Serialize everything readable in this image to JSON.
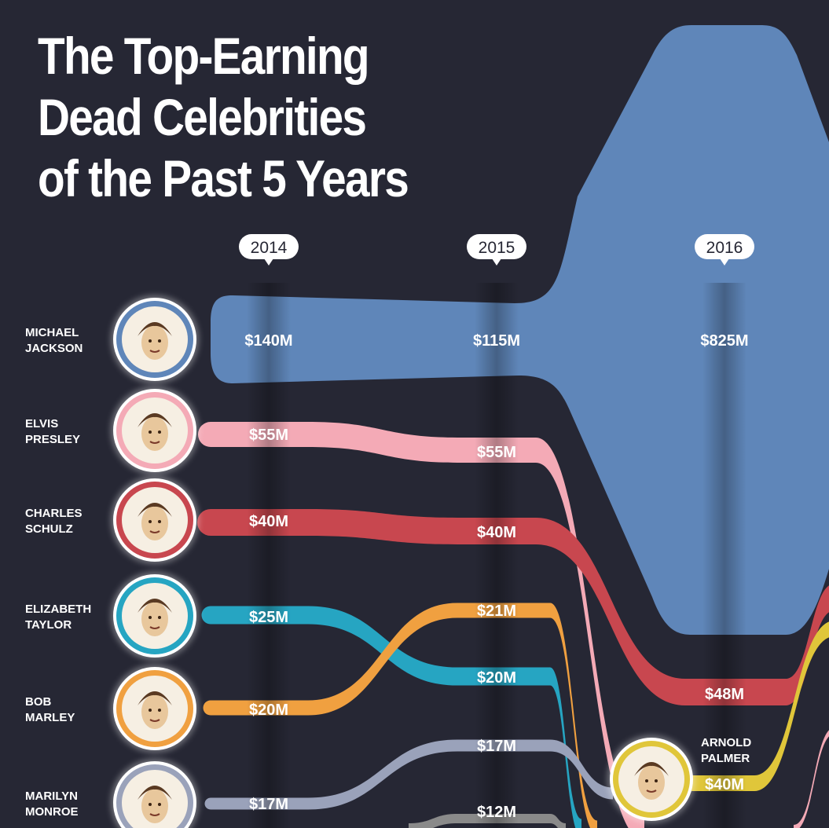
{
  "title_lines": [
    "The Top-Earning",
    "Dead Celebrities",
    "of the Past 5 Years"
  ],
  "chart_data": {
    "type": "sankey-bump",
    "title": "The Top-Earning Dead Celebrities of the Past 5 Years",
    "years": [
      "2014",
      "2015",
      "2016"
    ],
    "unit": "$M",
    "series": [
      {
        "name": "MICHAEL JACKSON",
        "color": "#5f86b9",
        "values": [
          140,
          115,
          825
        ],
        "labels": [
          "$140M",
          "$115M",
          "$825M"
        ]
      },
      {
        "name": "ELVIS PRESLEY",
        "color": "#f4aab6",
        "values": [
          55,
          55,
          null
        ],
        "labels": [
          "$55M",
          "$55M",
          ""
        ]
      },
      {
        "name": "CHARLES SCHULZ",
        "color": "#c8474f",
        "values": [
          40,
          40,
          48
        ],
        "labels": [
          "$40M",
          "$40M",
          "$48M"
        ]
      },
      {
        "name": "ELIZABETH TAYLOR",
        "color": "#26a5c2",
        "values": [
          25,
          20,
          null
        ],
        "labels": [
          "$25M",
          "$20M",
          ""
        ]
      },
      {
        "name": "BOB MARLEY",
        "color": "#f0a040",
        "values": [
          20,
          21,
          null
        ],
        "labels": [
          "$20M",
          "$21M",
          ""
        ]
      },
      {
        "name": "MARILYN MONROE",
        "color": "#9aa2ba",
        "values": [
          17,
          17,
          null
        ],
        "labels": [
          "$17M",
          "$17M",
          ""
        ]
      },
      {
        "name": "ARNOLD PALMER",
        "color": "#e0c63a",
        "values": [
          null,
          null,
          40
        ],
        "labels": [
          "",
          "",
          "$40M"
        ]
      },
      {
        "name": "",
        "color": "#8a8a8a",
        "values": [
          null,
          12,
          null
        ],
        "labels": [
          "",
          "$12M",
          ""
        ]
      }
    ],
    "celebrity_rows": [
      {
        "line1": "MICHAEL",
        "line2": "JACKSON",
        "ring": "#5f86b9",
        "icon": "michael-jackson-portrait"
      },
      {
        "line1": "ELVIS",
        "line2": "PRESLEY",
        "ring": "#f4aab6",
        "icon": "elvis-presley-portrait"
      },
      {
        "line1": "CHARLES",
        "line2": "SCHULZ",
        "ring": "#c8474f",
        "icon": "charles-schulz-portrait"
      },
      {
        "line1": "ELIZABETH",
        "line2": "TAYLOR",
        "ring": "#26a5c2",
        "icon": "elizabeth-taylor-portrait"
      },
      {
        "line1": "BOB",
        "line2": "MARLEY",
        "ring": "#f0a040",
        "icon": "bob-marley-portrait"
      },
      {
        "line1": "MARILYN",
        "line2": "MONROE",
        "ring": "#9aa2ba",
        "icon": "marilyn-monroe-portrait"
      }
    ],
    "new_entry": {
      "line1": "ARNOLD",
      "line2": "PALMER",
      "ring": "#e0c63a",
      "icon": "arnold-palmer-portrait"
    }
  }
}
